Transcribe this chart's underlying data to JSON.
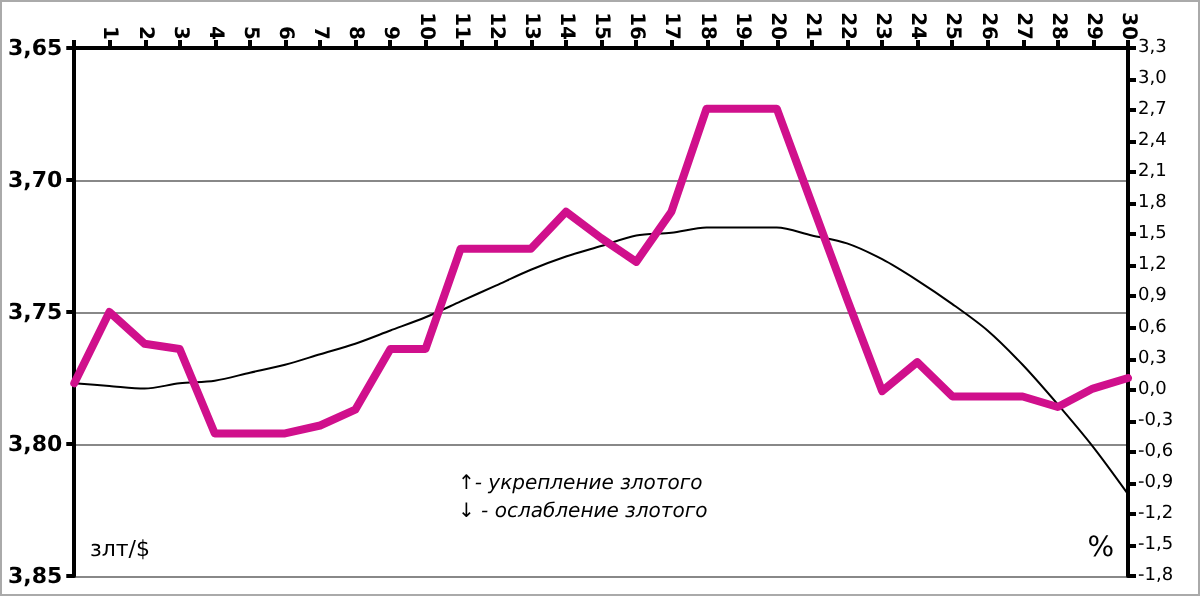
{
  "chart_data": {
    "type": "line",
    "ylabel": "злт/$",
    "y2label": "%",
    "categories": [
      null,
      "1",
      "2",
      "3",
      "4",
      "5",
      "6",
      "7",
      "8",
      "9",
      "10",
      "11",
      "12",
      "13",
      "14",
      "15",
      "16",
      "17",
      "18",
      "19",
      "20",
      "21",
      "22",
      "23",
      "24",
      "25",
      "26",
      "27",
      "28",
      "29",
      "30"
    ],
    "series": [
      {
        "color": "#d0108c",
        "values": [
          3.777,
          3.75,
          3.762,
          3.764,
          3.796,
          3.796,
          3.796,
          3.793,
          3.787,
          3.764,
          3.764,
          3.726,
          3.726,
          3.726,
          3.712,
          3.722,
          3.731,
          3.712,
          3.673,
          3.673,
          3.673,
          3.709,
          3.745,
          3.78,
          3.769,
          3.782,
          3.782,
          3.782,
          3.786,
          3.779,
          3.775
        ]
      },
      {
        "type": "line",
        "color": "#000000",
        "values": [
          3.777,
          3.778,
          3.779,
          3.777,
          3.776,
          3.773,
          3.77,
          3.766,
          3.762,
          3.757,
          3.752,
          3.746,
          3.74,
          3.734,
          3.729,
          3.725,
          3.721,
          3.72,
          3.718,
          3.718,
          3.718,
          3.721,
          3.724,
          3.73,
          3.738,
          3.747,
          3.757,
          3.77,
          3.785,
          3.801,
          3.819
        ]
      }
    ],
    "ylim": [
      3.85,
      3.65
    ],
    "yticks": [
      {
        "value": 3.65,
        "label": "3,65"
      },
      {
        "value": 3.7,
        "label": "3,70"
      },
      {
        "value": 3.75,
        "label": "3,75"
      },
      {
        "value": 3.8,
        "label": "3,80"
      },
      {
        "value": 3.85,
        "label": "3,85"
      }
    ],
    "y2lim": [
      -1.8,
      3.3
    ],
    "y2ticks": [
      {
        "value": -1.8,
        "label": "-1,8"
      },
      {
        "value": -1.5,
        "label": "-1,5"
      },
      {
        "value": -1.2,
        "label": "-1,2"
      },
      {
        "value": -0.9,
        "label": "-0,9"
      },
      {
        "value": -0.6,
        "label": "-0,6"
      },
      {
        "value": -0.3,
        "label": "-0,3"
      },
      {
        "value": 0,
        "label": "0,0"
      },
      {
        "value": 0.3,
        "label": "0,3"
      },
      {
        "value": 0.6,
        "label": "0,6"
      },
      {
        "value": 0.9,
        "label": "0,9"
      },
      {
        "value": 1.2,
        "label": "1,2"
      },
      {
        "value": 1.5,
        "label": "1,5"
      },
      {
        "value": 1.8,
        "label": "1,8"
      },
      {
        "value": 2.1,
        "label": "2,1"
      },
      {
        "value": 2.4,
        "label": "2,4"
      },
      {
        "value": 2.7,
        "label": "2,7"
      },
      {
        "value": 3.0,
        "label": "3,0"
      },
      {
        "value": 3.3,
        "label": "3,3"
      }
    ],
    "grid": "y",
    "marker": "none",
    "line_style": "solid",
    "annotations": [
      "↑- укрепление злотого",
      "↓ - ослабление злотого"
    ]
  }
}
